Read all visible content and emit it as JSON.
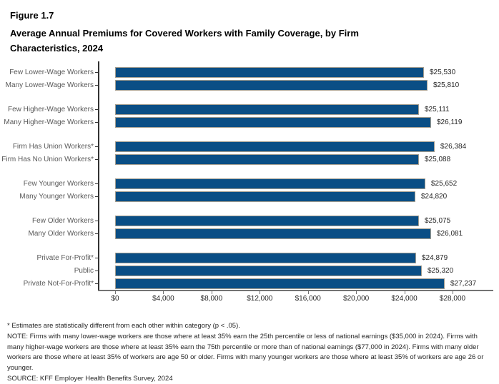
{
  "figure": {
    "label": "Figure 1.7",
    "title": "Average Annual Premiums for Covered Workers with Family Coverage, by Firm Characteristics, 2024"
  },
  "chart_data": {
    "type": "bar",
    "orientation": "horizontal",
    "title": "Average Annual Premiums for Covered Workers with Family Coverage, by Firm Characteristics, 2024",
    "xlabel": "",
    "ylabel": "",
    "xlim": [
      0,
      28000
    ],
    "x_tick_labels": [
      "$0",
      "$4,000",
      "$8,000",
      "$12,000",
      "$16,000",
      "$20,000",
      "$24,000",
      "$28,000"
    ],
    "grid": false,
    "legend": "none",
    "bar_color": "#0a4e85",
    "bar_border_color": "#a49e90",
    "groups": [
      {
        "name": "lower-wage-workers",
        "rows": [
          {
            "label": "Few Lower-Wage Workers",
            "value": 25530,
            "value_label": "$25,530"
          },
          {
            "label": "Many Lower-Wage Workers",
            "value": 25810,
            "value_label": "$25,810"
          }
        ]
      },
      {
        "name": "higher-wage-workers",
        "rows": [
          {
            "label": "Few Higher-Wage Workers",
            "value": 25111,
            "value_label": "$25,111"
          },
          {
            "label": "Many Higher-Wage Workers",
            "value": 26119,
            "value_label": "$26,119"
          }
        ]
      },
      {
        "name": "union-workers",
        "rows": [
          {
            "label": "Firm Has Union Workers*",
            "value": 26384,
            "value_label": "$26,384"
          },
          {
            "label": "Firm Has No Union Workers*",
            "value": 25088,
            "value_label": "$25,088"
          }
        ]
      },
      {
        "name": "younger-workers",
        "rows": [
          {
            "label": "Few Younger Workers",
            "value": 25652,
            "value_label": "$25,652"
          },
          {
            "label": "Many Younger Workers",
            "value": 24820,
            "value_label": "$24,820"
          }
        ]
      },
      {
        "name": "older-workers",
        "rows": [
          {
            "label": "Few Older Workers",
            "value": 25075,
            "value_label": "$25,075"
          },
          {
            "label": "Many Older Workers",
            "value": 26081,
            "value_label": "$26,081"
          }
        ]
      },
      {
        "name": "ownership",
        "rows": [
          {
            "label": "Private For-Profit*",
            "value": 24879,
            "value_label": "$24,879"
          },
          {
            "label": "Public",
            "value": 25320,
            "value_label": "$25,320"
          },
          {
            "label": "Private Not-For-Profit*",
            "value": 27237,
            "value_label": "$27,237"
          }
        ]
      }
    ]
  },
  "footnotes": {
    "significance": "* Estimates are statistically different from each other within category (p < .05).",
    "note": "NOTE: Firms with many lower-wage workers are those where at least 35% earn the 25th percentile or less of national earnings ($35,000 in 2024). Firms with many higher-wage workers are those where at least 35% earn the 75th percentile or more than of national earnings ($77,000 in 2024). Firms with many older workers are those where at least 35% of workers are age 50 or older. Firms with many younger workers are those where at least 35% of workers are age 26 or younger.",
    "source": "SOURCE: KFF Employer Health Benefits Survey, 2024"
  }
}
